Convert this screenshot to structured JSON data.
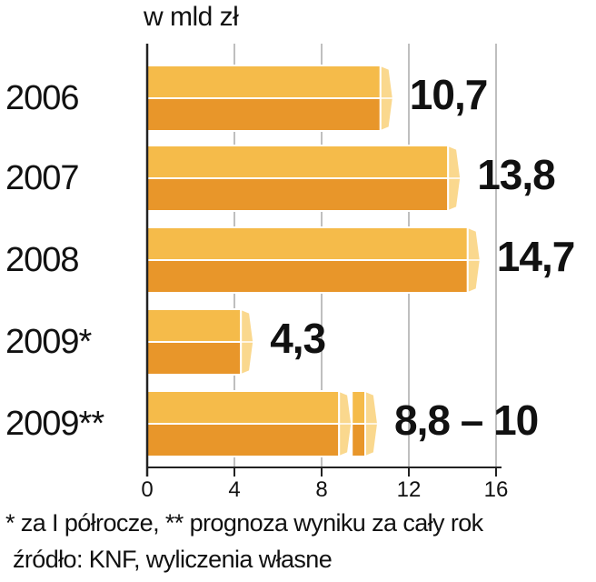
{
  "unit_label": "w mld zł",
  "footnote": "* za I półrocze, ** prognoza wyniku za cały rok",
  "source": "źródło: KNF, wyliczenia własne",
  "colors": {
    "bar_top": "#f5bb4a",
    "bar_bottom": "#e8962a",
    "bar_cap": "#fad88e",
    "bar_outline": "#ffffff",
    "grid": "#aaaaaa",
    "axis": "#222222",
    "text": "#111111"
  },
  "chart_data": {
    "type": "bar",
    "orientation": "horizontal",
    "categories": [
      "2006",
      "2007",
      "2008",
      "2009*",
      "2009**"
    ],
    "values": [
      10.7,
      13.8,
      14.7,
      4.3,
      10
    ],
    "value_labels": [
      "10,7",
      "13,8",
      "14,7",
      "4,3",
      "8,8 – 10"
    ],
    "ranges": [
      null,
      null,
      null,
      null,
      [
        8.8,
        10
      ]
    ],
    "xlim": [
      0,
      16
    ],
    "xticks": [
      0,
      4,
      8,
      12,
      16
    ],
    "tick_labels": [
      "0",
      "4",
      "8",
      "12",
      "16"
    ],
    "grid": true,
    "title": "",
    "xlabel": "",
    "ylabel": "w mld zł"
  }
}
